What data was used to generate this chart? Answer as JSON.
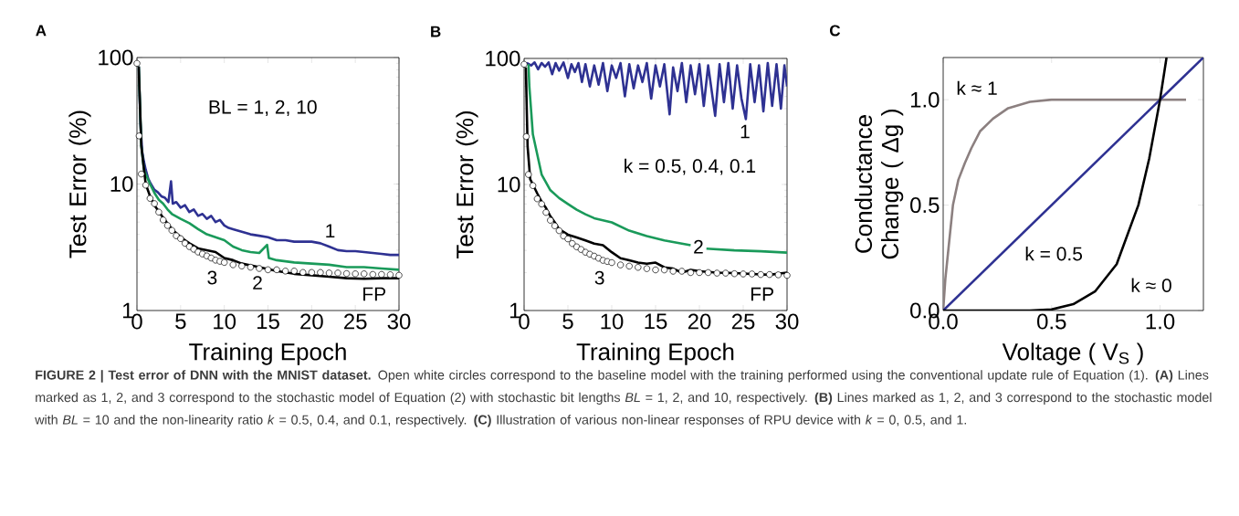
{
  "chart_data": [
    {
      "type": "line",
      "title": "A",
      "xlabel": "Training Epoch",
      "ylabel": "Test Error (%)",
      "log": "y",
      "xlim": [
        0,
        30
      ],
      "ylim": [
        1,
        100
      ],
      "xticks": [
        0,
        5,
        10,
        15,
        20,
        25,
        30
      ],
      "yticks": [
        1,
        10,
        100
      ],
      "series": [
        {
          "color": "#2e3192",
          "x": [
            0.2,
            0.4,
            0.6,
            0.8,
            1.0,
            1.3,
            1.6,
            2.0,
            2.4,
            2.8,
            3.2,
            3.6,
            3.9,
            4.1,
            4.5,
            5,
            5.5,
            6,
            6.5,
            7,
            7.5,
            8,
            8.5,
            9,
            9.5,
            10,
            10.5,
            11,
            12,
            13,
            14,
            15,
            16,
            17,
            18,
            19,
            20,
            21,
            22,
            23,
            24,
            25,
            26,
            27,
            28,
            29,
            30
          ],
          "values": [
            85,
            30,
            18,
            15,
            13,
            11,
            10,
            9,
            8.6,
            8,
            7.8,
            7.2,
            10.5,
            7,
            7.2,
            6.5,
            6.8,
            6,
            6.3,
            5.6,
            5.8,
            5.3,
            5.6,
            5.0,
            5.2,
            4.7,
            4.5,
            4.4,
            4.2,
            4.0,
            3.9,
            3.8,
            3.6,
            3.6,
            3.5,
            3.5,
            3.5,
            3.4,
            3.2,
            3.0,
            2.95,
            2.95,
            2.9,
            2.85,
            2.8,
            2.75,
            2.75
          ]
        },
        {
          "color": "#1a9a5a",
          "x": [
            0.2,
            0.5,
            0.8,
            1,
            1.5,
            2,
            2.5,
            3,
            3.5,
            4,
            5,
            6,
            7,
            8,
            9,
            10,
            11,
            12,
            13,
            14,
            14.9,
            15.1,
            16,
            18,
            20,
            22,
            24,
            26,
            28,
            30
          ],
          "values": [
            85,
            20,
            13,
            12,
            10,
            8.5,
            7.5,
            7,
            6.3,
            5.8,
            5.3,
            4.9,
            4.4,
            4.0,
            3.8,
            3.6,
            3.2,
            3.0,
            2.9,
            2.85,
            3.3,
            2.6,
            2.5,
            2.4,
            2.35,
            2.3,
            2.2,
            2.2,
            2.15,
            2.1
          ]
        },
        {
          "color": "#000000",
          "x": [
            0.2,
            0.5,
            1,
            1.5,
            2,
            3,
            4,
            5,
            6,
            7,
            8,
            9,
            10,
            11,
            12,
            14,
            16,
            18,
            20,
            22,
            24,
            26,
            28,
            30
          ],
          "values": [
            85,
            20,
            10,
            8,
            6.8,
            5.4,
            4.4,
            3.8,
            3.4,
            3.1,
            3.0,
            2.9,
            2.6,
            2.5,
            2.35,
            2.2,
            2.05,
            1.95,
            1.9,
            1.85,
            1.8,
            1.78,
            1.8,
            1.8
          ]
        },
        {
          "type": "scatter",
          "marker": "circle",
          "color": "#ffffff",
          "x": [
            0,
            0.25,
            0.5,
            1,
            1.5,
            2,
            2.5,
            3,
            3.5,
            4,
            4.5,
            5,
            5.5,
            6,
            6.5,
            7,
            7.5,
            8,
            8.5,
            9,
            9.5,
            10,
            11,
            12,
            13,
            14,
            15,
            16,
            17,
            18,
            19,
            20,
            21,
            22,
            23,
            24,
            25,
            26,
            27,
            28,
            29,
            30
          ],
          "values": [
            90,
            24,
            12,
            9.8,
            7.7,
            7,
            6,
            5.2,
            4.7,
            4.3,
            3.9,
            3.7,
            3.4,
            3.2,
            3.05,
            2.9,
            2.8,
            2.7,
            2.6,
            2.5,
            2.45,
            2.4,
            2.3,
            2.25,
            2.2,
            2.15,
            2.1,
            2.1,
            2.05,
            2.05,
            2.0,
            2.0,
            2.0,
            1.98,
            1.98,
            1.96,
            1.95,
            1.95,
            1.93,
            1.93,
            1.92,
            1.9
          ]
        }
      ],
      "annotations": [
        "BL = 1, 2, 10",
        "1",
        "2",
        "3",
        "FP"
      ]
    },
    {
      "type": "line",
      "title": "B",
      "xlabel": "Training Epoch",
      "ylabel": "Test Error (%)",
      "log": "y",
      "xlim": [
        0,
        30
      ],
      "ylim": [
        1,
        100
      ],
      "xticks": [
        0,
        5,
        10,
        15,
        20,
        25,
        30
      ],
      "yticks": [
        1,
        10,
        100
      ],
      "series": [
        {
          "color": "#2e3192",
          "x": [
            0.3,
            0.8,
            1.2,
            1.6,
            2.0,
            2.4,
            2.8,
            3.2,
            3.6,
            4.0,
            4.5,
            5.0,
            5.4,
            5.8,
            6.2,
            6.6,
            7.0,
            7.5,
            8.0,
            8.5,
            9.0,
            9.5,
            10.0,
            10.5,
            11,
            11.5,
            12,
            12.5,
            13,
            13.5,
            14,
            14.5,
            15,
            15.5,
            16,
            16.6,
            17,
            17.5,
            18,
            18.5,
            19,
            19.5,
            20,
            20.5,
            21,
            21.8,
            22.3,
            22.8,
            23.3,
            23.8,
            24.3,
            24.8,
            25.3,
            25.8,
            26.3,
            26.8,
            27.3,
            27.8,
            28.3,
            28.8,
            29.3,
            29.7,
            30
          ],
          "values": [
            92,
            88,
            93,
            82,
            92,
            86,
            93,
            75,
            92,
            80,
            93,
            70,
            90,
            78,
            92,
            65,
            90,
            60,
            88,
            62,
            92,
            55,
            88,
            70,
            92,
            50,
            90,
            58,
            88,
            65,
            92,
            48,
            88,
            60,
            90,
            36,
            85,
            55,
            92,
            45,
            88,
            52,
            90,
            42,
            88,
            35,
            90,
            45,
            92,
            40,
            88,
            48,
            33,
            90,
            45,
            88,
            38,
            92,
            42,
            90,
            40,
            88,
            60
          ]
        },
        {
          "color": "#1a9a5a",
          "x": [
            0.5,
            0.6,
            1,
            2,
            3,
            4,
            5,
            6,
            7,
            8,
            9,
            10,
            12,
            14,
            16,
            18,
            19,
            19.7,
            20.8,
            24,
            27,
            30
          ],
          "values": [
            90,
            60,
            25,
            12,
            9,
            7.8,
            7,
            6.3,
            5.8,
            5.4,
            5.2,
            5.0,
            4.3,
            3.9,
            3.6,
            3.4,
            3.3,
            null,
            3.1,
            3.0,
            2.95,
            2.88
          ]
        },
        {
          "color": "#000000",
          "x": [
            0.2,
            0.4,
            0.7,
            1,
            1.5,
            2,
            2.5,
            3,
            3.5,
            4,
            4.5,
            5,
            5.5,
            6,
            7,
            8,
            9,
            10,
            11,
            12,
            13,
            14,
            15,
            16,
            17,
            18,
            19,
            20,
            22,
            24,
            26,
            28,
            30
          ],
          "values": [
            85,
            20,
            11,
            10,
            8.5,
            7.3,
            6.5,
            5.6,
            5,
            4.4,
            4.2,
            4.0,
            3.9,
            3.8,
            3.6,
            3.4,
            3.3,
            2.9,
            2.6,
            2.5,
            2.4,
            2.35,
            2.4,
            2.2,
            2.15,
            2.0,
            2.1,
            2.05,
            2.0,
            1.98,
            1.95,
            1.92,
            2.0
          ]
        },
        {
          "type": "scatter",
          "marker": "circle",
          "color": "#ffffff",
          "x": [
            0,
            0.25,
            0.5,
            1,
            1.5,
            2,
            2.5,
            3,
            3.5,
            4,
            4.5,
            5,
            5.5,
            6,
            6.5,
            7,
            7.5,
            8,
            8.5,
            9,
            9.5,
            10,
            11,
            12,
            13,
            14,
            15,
            16,
            17,
            18,
            19,
            20,
            21,
            22,
            23,
            24,
            25,
            26,
            27,
            28,
            29,
            30
          ],
          "values": [
            90,
            24,
            12,
            9.8,
            7.7,
            7,
            6,
            5.2,
            4.7,
            4.3,
            3.9,
            3.7,
            3.4,
            3.2,
            3.05,
            2.9,
            2.8,
            2.7,
            2.6,
            2.5,
            2.45,
            2.4,
            2.3,
            2.25,
            2.2,
            2.15,
            2.1,
            2.1,
            2.05,
            2.05,
            2.0,
            2.0,
            2.0,
            1.98,
            1.98,
            1.96,
            1.95,
            1.95,
            1.93,
            1.93,
            1.92,
            1.9
          ]
        }
      ],
      "annotations": [
        "k = 0.5, 0.4, 0.1",
        "1",
        "2",
        "3",
        "FP"
      ]
    },
    {
      "type": "line",
      "title": "C",
      "xlabel": "Voltage ( V$_{S}$ )",
      "ylabel": "Conductance Change ( Δg )",
      "xlim": [
        0,
        1.2
      ],
      "ylim": [
        0,
        1.2
      ],
      "xticks": [
        {
          "value": 0,
          "label": "0.0"
        },
        {
          "value": 0.5,
          "label": "0.5"
        },
        {
          "value": 1,
          "label": "1.0"
        }
      ],
      "yticks": [
        {
          "value": 0,
          "label": "0.0"
        },
        {
          "value": 0.5,
          "label": "0.5"
        },
        {
          "value": 1,
          "label": "1.0"
        }
      ],
      "series": [
        {
          "color": "#8c8080",
          "x": [
            0,
            0.01,
            0.025,
            0.045,
            0.07,
            0.1,
            0.13,
            0.17,
            0.23,
            0.3,
            0.4,
            0.5,
            1.12
          ],
          "values": [
            0,
            0.15,
            0.3,
            0.5,
            0.62,
            0.7,
            0.77,
            0.85,
            0.91,
            0.96,
            0.99,
            1.0,
            1.0
          ]
        },
        {
          "color": "#2e3192",
          "x": [
            0,
            1.2
          ],
          "values": [
            0,
            1.2
          ]
        },
        {
          "color": "#000000",
          "x": [
            0,
            0.4,
            0.5,
            0.6,
            0.7,
            0.8,
            0.9,
            0.95,
            1.0,
            1.03
          ],
          "values": [
            0,
            0.0,
            0.005,
            0.03,
            0.09,
            0.22,
            0.5,
            0.72,
            1.0,
            1.2
          ]
        }
      ],
      "annotations": [
        "k ≈ 1",
        "k = 0.5",
        "k ≈ 0"
      ]
    },
    {
      "type": "other",
      "annotations": [
        "**FIGURE 2 | Test error of DNN with the MNIST dataset.** Open white circles correspond to the baseline model with the training performed using the conventional update rule of Equation (1). **(A)** Lines marked as 1, 2, and 3 correspond to the stochastic model of Equation (2) with stochastic bit lengths *BL* = 1, 2, and 10, respectively. **(B)** Lines marked as 1, 2, and 3 correspond to the stochastic model with *BL* = 10 and the non-linearity ratio *k* = 0.5, 0.4, and 0.1, respectively. **(C)** Illustration of various non-linear responses of RPU device with *k* = 0, 0.5, and 1."
      ]
    }
  ]
}
